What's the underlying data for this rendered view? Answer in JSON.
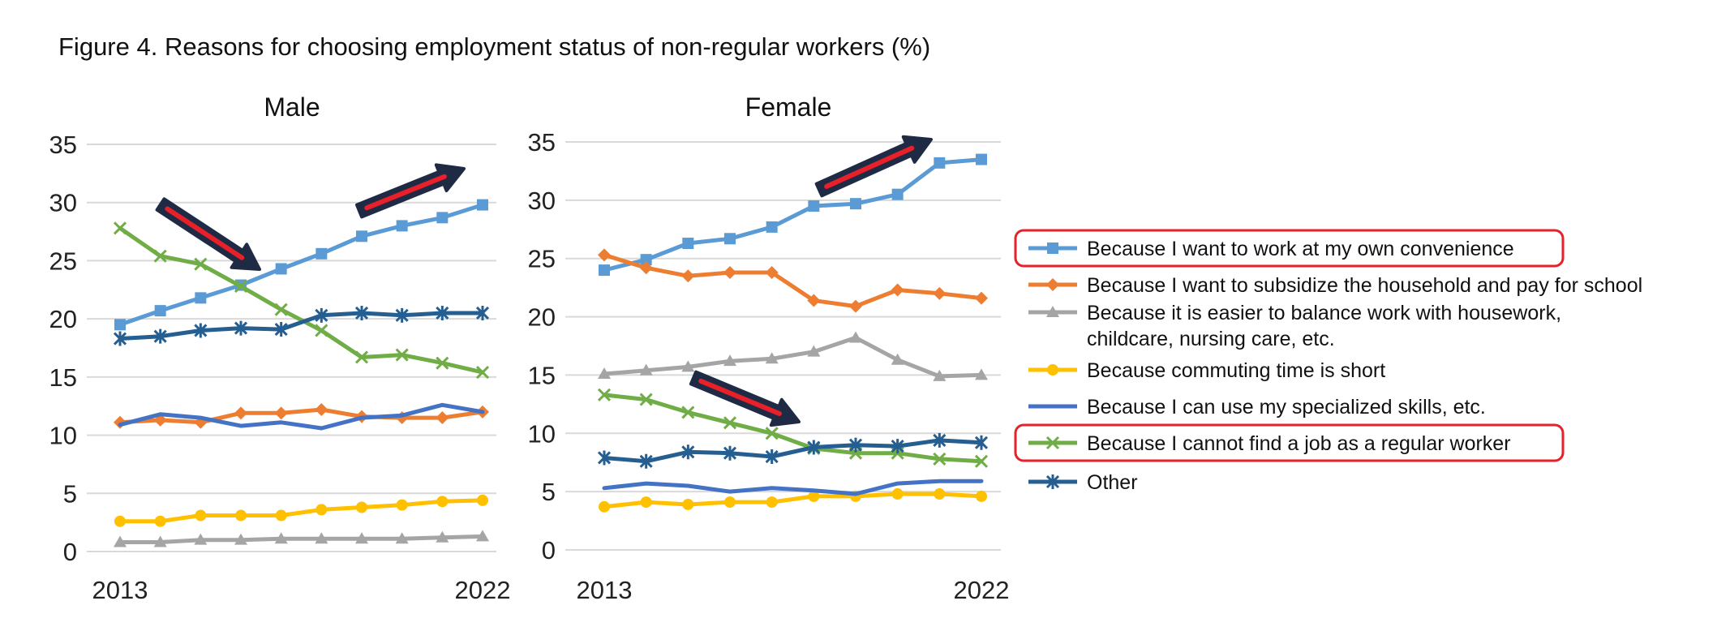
{
  "figure_title": "Figure 4. Reasons for choosing employment status of non-regular workers (%)",
  "chart_data": [
    {
      "type": "line",
      "title": "Male",
      "x": [
        2013,
        2014,
        2015,
        2016,
        2017,
        2018,
        2019,
        2020,
        2021,
        2022
      ],
      "x_tick_labels": [
        "2013",
        "2022"
      ],
      "ylim": [
        0,
        35
      ],
      "y_ticks": [
        0,
        5,
        10,
        15,
        20,
        25,
        30,
        35
      ],
      "grid": true,
      "series": [
        {
          "name": "Because I want to work at my own convenience",
          "color": "#5B9BD5",
          "marker": "square",
          "values": [
            19.5,
            20.7,
            21.8,
            22.9,
            24.3,
            25.6,
            27.1,
            28.0,
            28.7,
            29.8
          ]
        },
        {
          "name": "Because I want to subsidize the household and pay for school",
          "color": "#ED7D31",
          "marker": "diamond",
          "values": [
            11.1,
            11.3,
            11.1,
            11.9,
            11.9,
            12.2,
            11.6,
            11.5,
            11.5,
            12.0
          ]
        },
        {
          "name": "Because it is easier to balance work with housework, childcare, nursing care, etc.",
          "color": "#A5A5A5",
          "marker": "triangle",
          "values": [
            0.8,
            0.8,
            1.0,
            1.0,
            1.1,
            1.1,
            1.1,
            1.1,
            1.2,
            1.3
          ]
        },
        {
          "name": "Because commuting time is short",
          "color": "#FFC000",
          "marker": "circle",
          "values": [
            2.6,
            2.6,
            3.1,
            3.1,
            3.1,
            3.6,
            3.8,
            4.0,
            4.3,
            4.4
          ]
        },
        {
          "name": "Because I can use my specialized skills, etc.",
          "color": "#4472C4",
          "marker": "none",
          "values": [
            10.9,
            11.8,
            11.5,
            10.8,
            11.1,
            10.6,
            11.5,
            11.7,
            12.6,
            12.0
          ]
        },
        {
          "name": "Because I cannot find a job as a regular worker",
          "color": "#70AD47",
          "marker": "x",
          "values": [
            27.8,
            25.4,
            24.7,
            22.8,
            20.8,
            19.0,
            16.7,
            16.9,
            16.2,
            15.4
          ]
        },
        {
          "name": "Other",
          "color": "#255E91",
          "marker": "star",
          "values": [
            18.3,
            18.5,
            19.0,
            19.2,
            19.1,
            20.3,
            20.5,
            20.3,
            20.5,
            20.5
          ]
        }
      ]
    },
    {
      "type": "line",
      "title": "Female",
      "x": [
        2013,
        2014,
        2015,
        2016,
        2017,
        2018,
        2019,
        2020,
        2021,
        2022
      ],
      "x_tick_labels": [
        "2013",
        "2022"
      ],
      "ylim": [
        0,
        35
      ],
      "y_ticks": [
        0,
        5,
        10,
        15,
        20,
        25,
        30,
        35
      ],
      "grid": true,
      "series": [
        {
          "name": "Because I want to work at my own convenience",
          "color": "#5B9BD5",
          "marker": "square",
          "values": [
            24.0,
            24.9,
            26.3,
            26.7,
            27.7,
            29.5,
            29.7,
            30.5,
            33.2,
            33.5
          ]
        },
        {
          "name": "Because I want to subsidize the household and pay for school",
          "color": "#ED7D31",
          "marker": "diamond",
          "values": [
            25.3,
            24.2,
            23.5,
            23.8,
            23.8,
            21.4,
            20.9,
            22.3,
            22.0,
            21.6
          ]
        },
        {
          "name": "Because it is easier to balance work with housework, childcare, nursing care, etc.",
          "color": "#A5A5A5",
          "marker": "triangle",
          "values": [
            15.1,
            15.4,
            15.7,
            16.2,
            16.4,
            17.0,
            18.2,
            16.3,
            14.9,
            15.0
          ]
        },
        {
          "name": "Because commuting time is short",
          "color": "#FFC000",
          "marker": "circle",
          "values": [
            3.7,
            4.1,
            3.9,
            4.1,
            4.1,
            4.6,
            4.6,
            4.8,
            4.8,
            4.6
          ]
        },
        {
          "name": "Because I can use my specialized skills, etc.",
          "color": "#4472C4",
          "marker": "none",
          "values": [
            5.3,
            5.7,
            5.5,
            5.0,
            5.3,
            5.1,
            4.8,
            5.7,
            5.9,
            5.9
          ]
        },
        {
          "name": "Because I cannot find a job as a regular worker",
          "color": "#70AD47",
          "marker": "x",
          "values": [
            13.3,
            12.9,
            11.8,
            10.9,
            10.0,
            8.7,
            8.3,
            8.3,
            7.8,
            7.6
          ]
        },
        {
          "name": "Other",
          "color": "#255E91",
          "marker": "star",
          "values": [
            7.9,
            7.6,
            8.4,
            8.3,
            8.0,
            8.8,
            9.0,
            8.9,
            9.4,
            9.2
          ]
        }
      ]
    }
  ],
  "legend": {
    "placement": "right",
    "highlight_color": "#E8202A",
    "highlighted": [
      "Because I want to work at my own convenience",
      "Because I cannot find a job as a regular worker"
    ],
    "entries": [
      {
        "lines": [
          "Because I want to work at my own convenience"
        ]
      },
      {
        "lines": [
          "Because I want to subsidize the household and pay for school"
        ]
      },
      {
        "lines": [
          "Because it is easier to balance work with housework,",
          "childcare, nursing care, etc."
        ]
      },
      {
        "lines": [
          "Because commuting time is short"
        ]
      },
      {
        "lines": [
          "Because I can use my specialized skills, etc."
        ]
      },
      {
        "lines": [
          "Because I cannot find a job as a regular worker"
        ]
      },
      {
        "lines": [
          "Other"
        ]
      }
    ]
  },
  "annotations": {
    "arrow_fill": "#E8202A",
    "arrow_outline": "#1F2A44"
  }
}
